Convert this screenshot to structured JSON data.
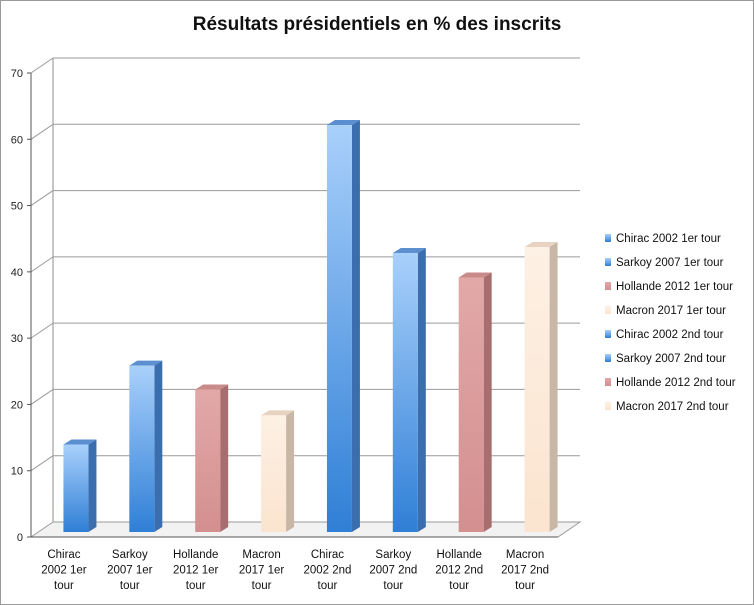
{
  "chart_data": {
    "type": "bar",
    "title": "Résultats présidentiels en % des inscrits",
    "xlabel": "",
    "ylabel": "",
    "ylim": [
      0,
      70
    ],
    "yticks": [
      0,
      10,
      20,
      30,
      40,
      50,
      60,
      70
    ],
    "grid": true,
    "legend_position": "right",
    "categories": [
      [
        "Chirac",
        "2002 1er",
        "tour"
      ],
      [
        "Sarkoy",
        "2007 1er",
        "tour"
      ],
      [
        "Hollande",
        "2012 1er",
        "tour"
      ],
      [
        "Macron",
        "2017 1er",
        "tour"
      ],
      [
        "Chirac",
        "2002 2nd",
        "tour"
      ],
      [
        "Sarkoy",
        "2007  2nd",
        "tour"
      ],
      [
        "Hollande",
        "2012  2nd",
        "tour"
      ],
      [
        "Macron",
        "2017  2nd",
        "tour"
      ]
    ],
    "series": [
      {
        "name": "Chirac 2002 1er tour",
        "value": 13.8,
        "color": "#6aa7e6"
      },
      {
        "name": "Sarkoy 2007 1er tour",
        "value": 25.7,
        "color": "#6aa7e6"
      },
      {
        "name": "Hollande 2012 1er tour",
        "value": 22.1,
        "color": "#d99a9a"
      },
      {
        "name": "Macron 2017 1er tour",
        "value": 18.2,
        "color": "#fbe6d4"
      },
      {
        "name": "Chirac 2002 2nd tour",
        "value": 62.0,
        "color": "#6aa7e6"
      },
      {
        "name": "Sarkoy 2007  2nd tour",
        "value": 42.7,
        "color": "#6aa7e6"
      },
      {
        "name": "Hollande 2012  2nd tour",
        "value": 39.0,
        "color": "#d99a9a"
      },
      {
        "name": "Macron 2017  2nd tour",
        "value": 43.6,
        "color": "#fbe6d4"
      }
    ]
  }
}
